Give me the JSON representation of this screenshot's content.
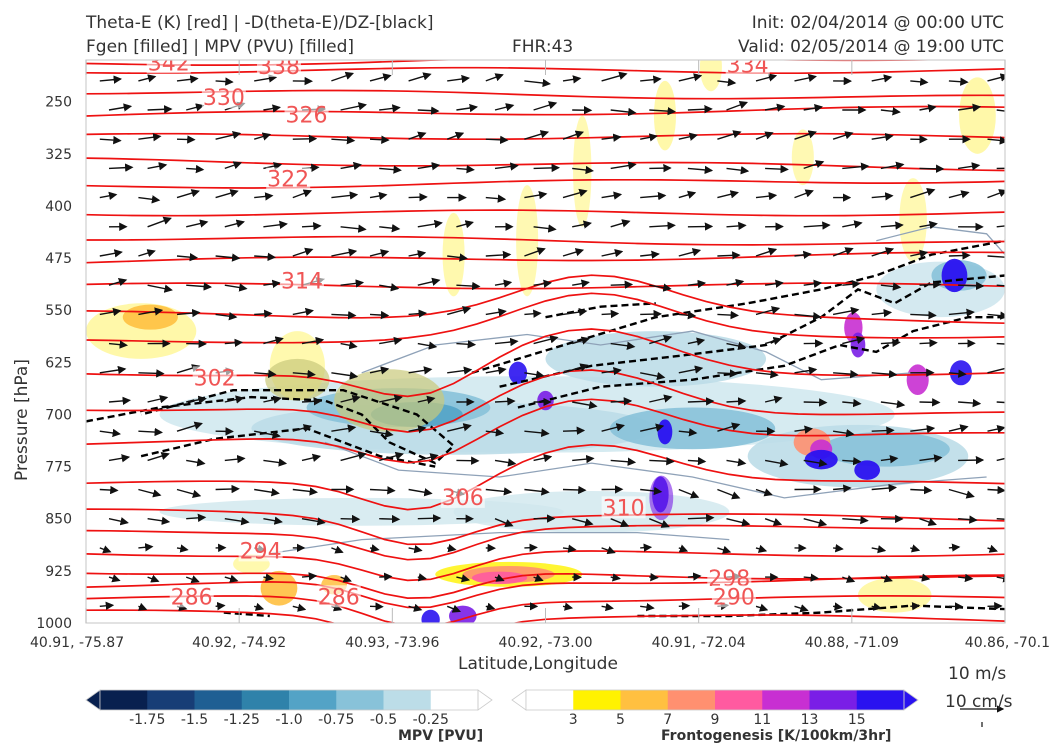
{
  "header": {
    "left_line1": "Theta-E (K) [red] | -D(theta-E)/DZ-[black]",
    "left_line2": "Fgen [filled] | MPV (PVU) [filled]",
    "center": "FHR:43",
    "right_line1": "Init: 02/04/2014 @ 00:00 UTC",
    "right_line2": "Valid: 02/05/2014 @ 19:00 UTC"
  },
  "chart_data": {
    "type": "cross-section",
    "xlabel": "Latitude,Longitude",
    "ylabel": "Pressure [hPa]",
    "x_ticks": [
      "40.91, -75.87",
      "40.92, -74.92",
      "40.93, -73.96",
      "40.92, -73.00",
      "40.91, -72.04",
      "40.88, -71.09",
      "40.86, -70.1"
    ],
    "y_ticks": [
      250,
      325,
      400,
      475,
      550,
      625,
      700,
      775,
      850,
      925,
      1000
    ],
    "ylim": [
      190,
      1000
    ],
    "y_inverted": true,
    "theta_e_labels": [
      {
        "text": "342",
        "x": 0.09,
        "p": 195
      },
      {
        "text": "338",
        "x": 0.21,
        "p": 200
      },
      {
        "text": "334",
        "x": 0.72,
        "p": 198
      },
      {
        "text": "330",
        "x": 0.15,
        "p": 245
      },
      {
        "text": "326",
        "x": 0.24,
        "p": 270
      },
      {
        "text": "322",
        "x": 0.22,
        "p": 362
      },
      {
        "text": "314",
        "x": 0.235,
        "p": 509
      },
      {
        "text": "302",
        "x": 0.14,
        "p": 648
      },
      {
        "text": "306",
        "x": 0.41,
        "p": 820
      },
      {
        "text": "310",
        "x": 0.585,
        "p": 835
      },
      {
        "text": "294",
        "x": 0.19,
        "p": 897
      },
      {
        "text": "286",
        "x": 0.115,
        "p": 963
      },
      {
        "text": "286",
        "x": 0.275,
        "p": 963
      },
      {
        "text": "298",
        "x": 0.7,
        "p": 937
      },
      {
        "text": "290",
        "x": 0.705,
        "p": 963
      }
    ],
    "mpv_colorbar": {
      "label": "MPV [PVU]",
      "ticks": [
        "-1.75",
        "-1.5",
        "-1.25",
        "-1.0",
        "-0.75",
        "-0.5",
        "-0.25"
      ],
      "colors": [
        "#08204f",
        "#173d76",
        "#1f5f93",
        "#2f82aa",
        "#53a3c6",
        "#88c2d9",
        "#bcdde8",
        "#ffffff"
      ]
    },
    "fgen_colorbar": {
      "label": "Frontogenesis [K/100km/3hr]",
      "ticks": [
        "3",
        "5",
        "7",
        "9",
        "11",
        "13",
        "15"
      ],
      "colors": [
        "#ffffff",
        "#fff200",
        "#ffc040",
        "#ff9070",
        "#ff5aa0",
        "#c82fd2",
        "#7a1ee6",
        "#2a12f0"
      ]
    },
    "wind_key": {
      "line1": "10 m/s",
      "line2": "10 cm/s"
    },
    "grid": true
  }
}
